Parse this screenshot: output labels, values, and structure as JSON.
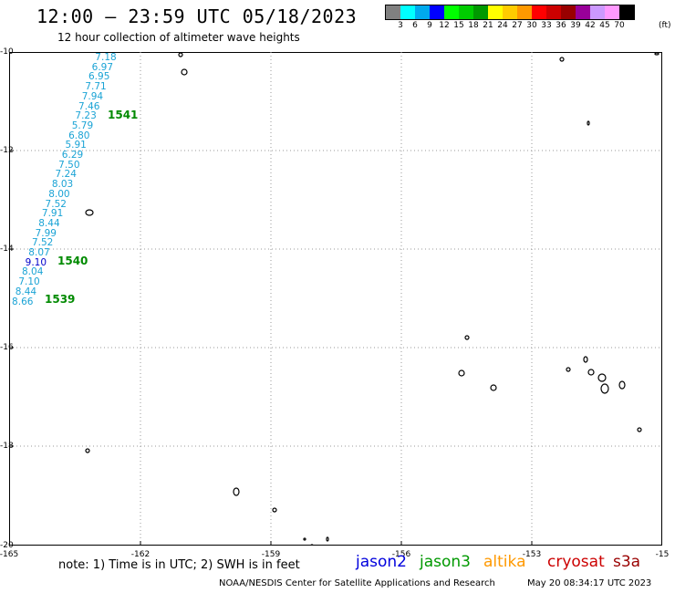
{
  "title": "12:00 – 23:59 UTC 05/18/2023",
  "subtitle": "12 hour collection of altimeter wave heights",
  "legend": {
    "colors": [
      "#808080",
      "#00ffff",
      "#00aaee",
      "#0000ff",
      "#00ff00",
      "#00cc00",
      "#009900",
      "#ffff00",
      "#ffcc00",
      "#ff9900",
      "#ff0000",
      "#cc0000",
      "#990000",
      "#990099",
      "#cc99ff",
      "#ff99ff",
      "#000000"
    ],
    "labels": [
      "3",
      "6",
      "9",
      "12",
      "15",
      "18",
      "21",
      "24",
      "27",
      "30",
      "33",
      "36",
      "39",
      "42",
      "45",
      "70"
    ],
    "unit": "(ft)"
  },
  "lat_labels": [
    "-10",
    "-12",
    "-14",
    "-16",
    "-18",
    "-20"
  ],
  "lon_labels": [
    "-165",
    "-162",
    "-159",
    "-156",
    "-153",
    "-15"
  ],
  "track_values": [
    "7.18",
    "6.97",
    "6.95",
    "7.71",
    "7.94",
    "7.46",
    "7.23",
    "5.79",
    "6.80",
    "5.91",
    "6.29",
    "7.50",
    "7.24",
    "8.03",
    "8.00",
    "7.52",
    "7.91",
    "8.44",
    "7.99",
    "7.52",
    "8.07",
    "9.10",
    "8.04",
    "7.10",
    "8.44",
    "8.66"
  ],
  "pass_labels": [
    "1541",
    "1540",
    "1539"
  ],
  "note": "note: 1) Time is in UTC; 2) SWH is in feet",
  "satellites": [
    "jason2",
    "jason3",
    "altika",
    "cryosat",
    "s3a"
  ],
  "footer": {
    "credit": "NOAA/NESDIS Center for Satellite Applications and Research",
    "timestamp": "May 20 08:34:17 UTC 2023"
  }
}
